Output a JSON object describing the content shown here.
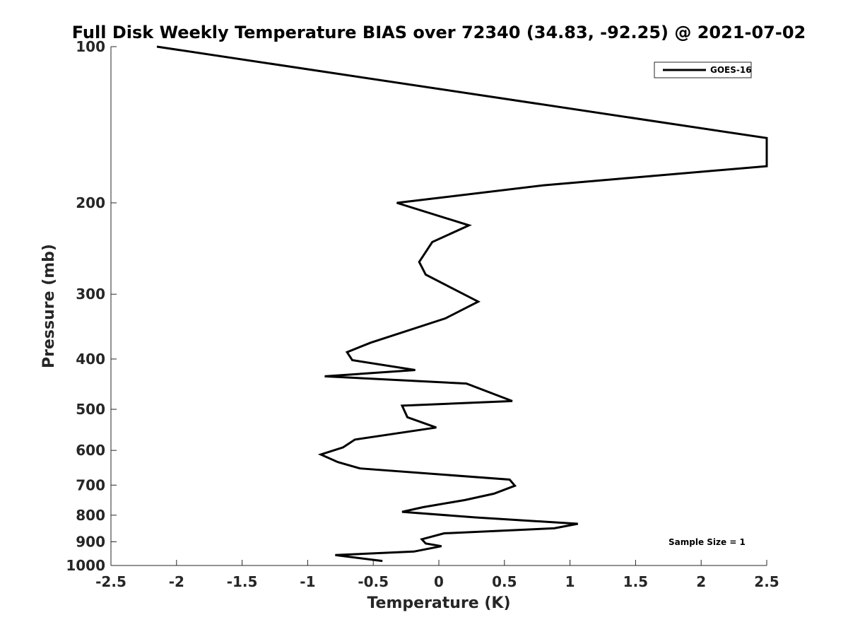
{
  "chart_data": {
    "type": "line",
    "title": "Full Disk Weekly Temperature BIAS over 72340 (34.83, -92.25) @ 2021-07-02",
    "xlabel": "Temperature (K)",
    "ylabel": "Pressure (mb)",
    "xlim": [
      -2.5,
      2.5
    ],
    "ylim": [
      1000,
      100
    ],
    "y_scale": "log",
    "x_ticks": [
      -2.5,
      -2,
      -1.5,
      -1,
      -0.5,
      0,
      0.5,
      1,
      1.5,
      2,
      2.5
    ],
    "x_tick_labels": [
      "-2.5",
      "-2",
      "-1.5",
      "-1",
      "-0.5",
      "0",
      "0.5",
      "1",
      "1.5",
      "2",
      "2.5"
    ],
    "y_ticks": [
      100,
      200,
      300,
      400,
      500,
      600,
      700,
      800,
      900,
      1000
    ],
    "y_tick_labels": [
      "100",
      "200",
      "300",
      "400",
      "500",
      "600",
      "700",
      "800",
      "900",
      "1000"
    ],
    "grid": false,
    "legend_position": "top-right",
    "annotation": "Sample Size = 1",
    "series": [
      {
        "name": "GOES-16",
        "color": "#000000",
        "points": [
          [
            -2.15,
            100
          ],
          [
            2.5,
            150
          ],
          [
            2.5,
            170
          ],
          [
            0.8,
            185
          ],
          [
            -0.32,
            200
          ],
          [
            0.23,
            221
          ],
          [
            -0.05,
            238
          ],
          [
            -0.15,
            260
          ],
          [
            -0.1,
            275
          ],
          [
            0.3,
            310
          ],
          [
            0.05,
            334
          ],
          [
            -0.52,
            372
          ],
          [
            -0.7,
            388
          ],
          [
            -0.66,
            402
          ],
          [
            -0.18,
            420
          ],
          [
            -0.87,
            432
          ],
          [
            0.21,
            446
          ],
          [
            0.56,
            482
          ],
          [
            -0.28,
            492
          ],
          [
            -0.24,
            518
          ],
          [
            -0.02,
            542
          ],
          [
            -0.64,
            572
          ],
          [
            -0.73,
            592
          ],
          [
            -0.9,
            611
          ],
          [
            -0.77,
            632
          ],
          [
            -0.6,
            650
          ],
          [
            0.54,
            683
          ],
          [
            0.58,
            702
          ],
          [
            0.42,
            727
          ],
          [
            0.2,
            748
          ],
          [
            -0.12,
            772
          ],
          [
            -0.28,
            788
          ],
          [
            0.28,
            808
          ],
          [
            1.06,
            831
          ],
          [
            0.88,
            848
          ],
          [
            0.04,
            867
          ],
          [
            -0.13,
            890
          ],
          [
            -0.1,
            907
          ],
          [
            0.02,
            918
          ],
          [
            -0.19,
            940
          ],
          [
            -0.79,
            955
          ],
          [
            -0.43,
            980
          ]
        ]
      }
    ]
  }
}
